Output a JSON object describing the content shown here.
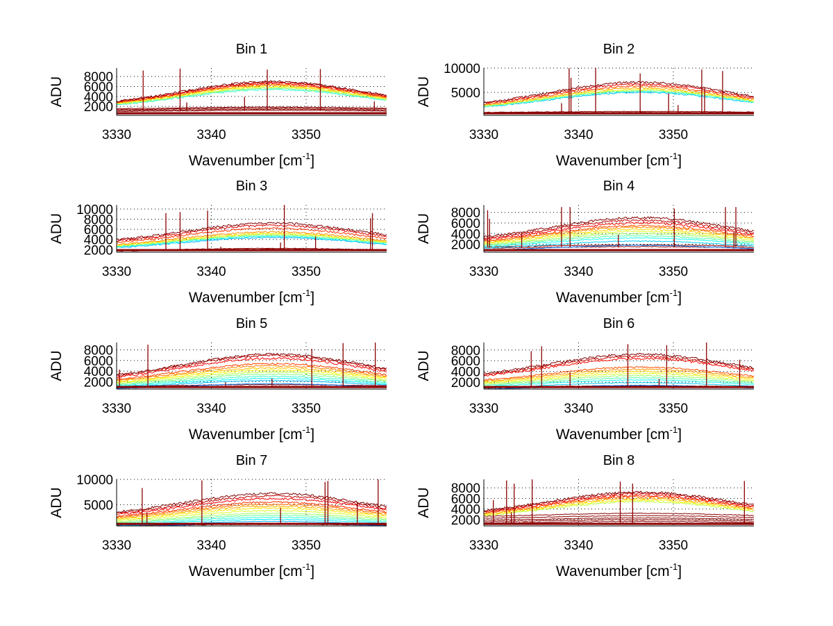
{
  "figure": {
    "layout": "4 rows x 2 columns",
    "background": "#ffffff"
  },
  "chart_data": [
    {
      "type": "line",
      "title": "Bin 1",
      "xlabel": "Wavenumber [cm^-1]",
      "xlabel_main": "Wavenumber [cm",
      "xlabel_sup": "-1",
      "xlabel_end": "]",
      "ylabel": "ADU",
      "xlim": [
        3330,
        3358.5
      ],
      "ylim": [
        200,
        9700
      ],
      "xticks": [
        3330,
        3340,
        3350
      ],
      "yticks": [
        2000,
        4000,
        6000,
        8000
      ],
      "ytick_labels": [
        "2000",
        "4000",
        "6000",
        "8000"
      ],
      "grid": true,
      "colormap": "jet",
      "series_description": "Many overlaid spectra forming a broad hump centered near 3346 cm^-1; upper bundle peaks ~5600-7000 ADU, a lower baseline bundle near ~1200-1700 ADU; sharp cosmic-ray spikes",
      "upper_peaks": [
        5400,
        5600,
        5800,
        6000,
        6200,
        6400,
        6600,
        6800,
        7000
      ],
      "lower_levels": [
        1100,
        1300,
        1500,
        1700
      ],
      "edge_ratio": 0.27,
      "spikes": [
        {
          "x": 3332.8,
          "y": 9200
        },
        {
          "x": 3336.7,
          "y": 9600
        },
        {
          "x": 3343.5,
          "y": 3900
        },
        {
          "x": 3345.9,
          "y": 9400
        },
        {
          "x": 3351.5,
          "y": 9500
        },
        {
          "x": 3357.2,
          "y": 3000
        },
        {
          "x": 3337.4,
          "y": 2800
        }
      ]
    },
    {
      "type": "line",
      "title": "Bin 2",
      "xlabel": "Wavenumber [cm^-1]",
      "xlabel_main": "Wavenumber [cm",
      "xlabel_sup": "-1",
      "xlabel_end": "]",
      "ylabel": "ADU",
      "xlim": [
        3330,
        3358.5
      ],
      "ylim": [
        300,
        10000
      ],
      "xticks": [
        3330,
        3340,
        3350
      ],
      "yticks": [
        5000,
        10000
      ],
      "ytick_labels": [
        "5000",
        "10000"
      ],
      "grid": true,
      "colormap": "jet",
      "series_description": "Broad hump near 3346 cm^-1, peak ~5200-7200 ADU, baseline bundle ~900 ADU, several tall spikes",
      "upper_peaks": [
        5000,
        5200,
        5400,
        5600,
        5900,
        6300,
        6700,
        7100
      ],
      "lower_levels": [
        800,
        1000
      ],
      "edge_ratio": 0.24,
      "spikes": [
        {
          "x": 3339.0,
          "y": 10000
        },
        {
          "x": 3339.2,
          "y": 8000
        },
        {
          "x": 3341.8,
          "y": 10000
        },
        {
          "x": 3346.5,
          "y": 8900
        },
        {
          "x": 3349.5,
          "y": 4800
        },
        {
          "x": 3353.0,
          "y": 9700
        },
        {
          "x": 3353.3,
          "y": 6000
        },
        {
          "x": 3355.2,
          "y": 9400
        },
        {
          "x": 3338.2,
          "y": 2800
        },
        {
          "x": 3350.5,
          "y": 2400
        }
      ]
    },
    {
      "type": "line",
      "title": "Bin 3",
      "xlabel": "Wavenumber [cm^-1]",
      "xlabel_main": "Wavenumber [cm",
      "xlabel_sup": "-1",
      "xlabel_end": "]",
      "ylabel": "ADU",
      "xlim": [
        3330,
        3358.5
      ],
      "ylim": [
        1500,
        10800
      ],
      "xticks": [
        3330,
        3340,
        3350
      ],
      "yticks": [
        2000,
        4000,
        6000,
        8000,
        10000
      ],
      "ytick_labels": [
        "2000",
        "4000",
        "6000",
        "8000",
        "10000"
      ],
      "grid": true,
      "colormap": "jet",
      "series_description": "Hump near 3346 cm^-1 with blue bundle ~4500-5200 ADU and red/orange upper traces to ~7200 ADU; baseline ~2000 ADU; spikes",
      "upper_peaks": [
        4400,
        4600,
        4800,
        5000,
        5200,
        5500,
        6200,
        6800,
        7200
      ],
      "lower_levels": [
        1900,
        2050
      ],
      "edge_ratio": 0.42,
      "spikes": [
        {
          "x": 3335.2,
          "y": 9200
        },
        {
          "x": 3336.7,
          "y": 9400
        },
        {
          "x": 3339.6,
          "y": 9700
        },
        {
          "x": 3341.0,
          "y": 2600
        },
        {
          "x": 3347.3,
          "y": 3400
        },
        {
          "x": 3347.7,
          "y": 10800
        },
        {
          "x": 3351.0,
          "y": 4600
        },
        {
          "x": 3356.8,
          "y": 8200
        },
        {
          "x": 3357.0,
          "y": 9200
        }
      ]
    },
    {
      "type": "line",
      "title": "Bin 4",
      "xlabel": "Wavenumber [cm^-1]",
      "xlabel_main": "Wavenumber [cm",
      "xlabel_sup": "-1",
      "xlabel_end": "]",
      "ylabel": "ADU",
      "xlim": [
        3330,
        3358.5
      ],
      "ylim": [
        500,
        9400
      ],
      "xticks": [
        3330,
        3340,
        3350
      ],
      "yticks": [
        2000,
        4000,
        6000,
        8000
      ],
      "ytick_labels": [
        "2000",
        "4000",
        "6000",
        "8000"
      ],
      "grid": true,
      "colormap": "jet",
      "series_description": "Many spectra spread between ~1500 and ~7000 ADU peaking near 3346 cm^-1, colored by jet colormap; tall spikes",
      "upper_peaks": [
        1800,
        2600,
        3200,
        3600,
        4000,
        4400,
        4800,
        5200,
        5500,
        6000,
        6500,
        7000
      ],
      "lower_levels": [
        1400,
        1700
      ],
      "edge_ratio": 0.33,
      "spikes": [
        {
          "x": 3330.4,
          "y": 8400
        },
        {
          "x": 3330.6,
          "y": 6800
        },
        {
          "x": 3334.0,
          "y": 4200
        },
        {
          "x": 3338.2,
          "y": 9000
        },
        {
          "x": 3339.1,
          "y": 9000
        },
        {
          "x": 3344.2,
          "y": 3800
        },
        {
          "x": 3350.1,
          "y": 8700
        },
        {
          "x": 3355.5,
          "y": 9000
        },
        {
          "x": 3356.6,
          "y": 9000
        },
        {
          "x": 3356.4,
          "y": 4400
        }
      ]
    },
    {
      "type": "line",
      "title": "Bin 5",
      "xlabel": "Wavenumber [cm^-1]",
      "xlabel_main": "Wavenumber [cm",
      "xlabel_sup": "-1",
      "xlabel_end": "]",
      "ylabel": "ADU",
      "xlim": [
        3330,
        3358.5
      ],
      "ylim": [
        600,
        9400
      ],
      "xticks": [
        3330,
        3340,
        3350
      ],
      "yticks": [
        2000,
        4000,
        6000,
        8000
      ],
      "ytick_labels": [
        "2000",
        "4000",
        "6000",
        "8000"
      ],
      "grid": true,
      "colormap": "jet",
      "series_description": "Broad hump near 3346 cm^-1 with traces from ~1500 to ~7200 ADU, dense blue/cyan bundle 2000-4500 ADU; spikes",
      "upper_peaks": [
        1600,
        2200,
        2600,
        3000,
        3400,
        3800,
        4200,
        4600,
        5000,
        5400,
        6400,
        6900,
        7200
      ],
      "lower_levels": [
        1000,
        1300
      ],
      "edge_ratio": 0.3,
      "spikes": [
        {
          "x": 3330.3,
          "y": 4300
        },
        {
          "x": 3333.3,
          "y": 9000
        },
        {
          "x": 3341.5,
          "y": 1900
        },
        {
          "x": 3346.4,
          "y": 2600
        },
        {
          "x": 3350.6,
          "y": 8200
        },
        {
          "x": 3353.9,
          "y": 9300
        },
        {
          "x": 3357.3,
          "y": 9400
        }
      ]
    },
    {
      "type": "line",
      "title": "Bin 6",
      "xlabel": "Wavenumber [cm^-1]",
      "xlabel_main": "Wavenumber [cm",
      "xlabel_sup": "-1",
      "xlabel_end": "]",
      "ylabel": "ADU",
      "xlim": [
        3330,
        3358.5
      ],
      "ylim": [
        700,
        9400
      ],
      "xticks": [
        3330,
        3340,
        3350
      ],
      "yticks": [
        2000,
        4000,
        6000,
        8000
      ],
      "ytick_labels": [
        "2000",
        "4000",
        "6000",
        "8000"
      ],
      "grid": true,
      "colormap": "jet",
      "series_description": "Hump near 3346 cm^-1 with upper traces ~6500-7200 ADU, mid bundle ~2500-4800 ADU, dark blue baseline ~1200 ADU; spikes",
      "upper_peaks": [
        1400,
        1900,
        2400,
        2800,
        3200,
        3600,
        4000,
        4400,
        4800,
        6400,
        6800,
        7200
      ],
      "lower_levels": [
        1000,
        1200
      ],
      "edge_ratio": 0.36,
      "spikes": [
        {
          "x": 3335.0,
          "y": 7800
        },
        {
          "x": 3336.1,
          "y": 8700
        },
        {
          "x": 3339.1,
          "y": 3800
        },
        {
          "x": 3345.2,
          "y": 9100
        },
        {
          "x": 3349.3,
          "y": 8900
        },
        {
          "x": 3353.5,
          "y": 9400
        },
        {
          "x": 3357.0,
          "y": 6200
        },
        {
          "x": 3348.5,
          "y": 2600
        }
      ]
    },
    {
      "type": "line",
      "title": "Bin 7",
      "xlabel": "Wavenumber [cm^-1]",
      "xlabel_main": "Wavenumber [cm",
      "xlabel_sup": "-1",
      "xlabel_end": "]",
      "ylabel": "ADU",
      "xlim": [
        3330,
        3358.5
      ],
      "ylim": [
        800,
        10000
      ],
      "xticks": [
        3330,
        3340,
        3350
      ],
      "yticks": [
        5000,
        10000
      ],
      "ytick_labels": [
        "5000",
        "10000"
      ],
      "grid": true,
      "colormap": "jet",
      "series_description": "Hump near 3346 cm^-1 with many traces from ~1200 to ~7200 ADU, blue bundle ~4500-5500 ADU, red trace ~3800 ADU; spikes",
      "upper_peaks": [
        1300,
        1700,
        2100,
        2500,
        2900,
        3300,
        3800,
        4300,
        4700,
        5100,
        5500,
        6200,
        6700,
        7200
      ],
      "lower_levels": [
        1000,
        1200
      ],
      "edge_ratio": 0.35,
      "spikes": [
        {
          "x": 3332.7,
          "y": 8300
        },
        {
          "x": 3333.2,
          "y": 3500
        },
        {
          "x": 3339.0,
          "y": 9800
        },
        {
          "x": 3347.3,
          "y": 4400
        },
        {
          "x": 3352.0,
          "y": 9500
        },
        {
          "x": 3352.3,
          "y": 9700
        },
        {
          "x": 3355.4,
          "y": 5600
        },
        {
          "x": 3357.6,
          "y": 10000
        }
      ]
    },
    {
      "type": "line",
      "title": "Bin 8",
      "xlabel": "Wavenumber [cm^-1]",
      "xlabel_main": "Wavenumber [cm",
      "xlabel_sup": "-1",
      "xlabel_end": "]",
      "ylabel": "ADU",
      "xlim": [
        3330,
        3358.5
      ],
      "ylim": [
        800,
        9600
      ],
      "xticks": [
        3330,
        3340,
        3350
      ],
      "yticks": [
        2000,
        4000,
        6000,
        8000
      ],
      "ytick_labels": [
        "2000",
        "4000",
        "6000",
        "8000"
      ],
      "grid": true,
      "colormap": "jet",
      "series_description": "Upper blue bundle peaking ~5500-7200 ADU near 3347 cm^-1, separate lower bundle ~1500-3000 ADU led by red trace; spikes",
      "upper_peaks": [
        5400,
        5700,
        6000,
        6300,
        6600,
        6900,
        7200
      ],
      "lower_levels": [
        1200,
        1500,
        1800,
        2100,
        2500,
        2900
      ],
      "edge_ratio": 0.38,
      "spikes": [
        {
          "x": 3331.0,
          "y": 5700
        },
        {
          "x": 3332.4,
          "y": 9400
        },
        {
          "x": 3333.2,
          "y": 8800
        },
        {
          "x": 3332.9,
          "y": 3400
        },
        {
          "x": 3335.1,
          "y": 9600
        },
        {
          "x": 3344.4,
          "y": 9200
        },
        {
          "x": 3345.7,
          "y": 8800
        },
        {
          "x": 3357.5,
          "y": 9300
        }
      ]
    }
  ]
}
